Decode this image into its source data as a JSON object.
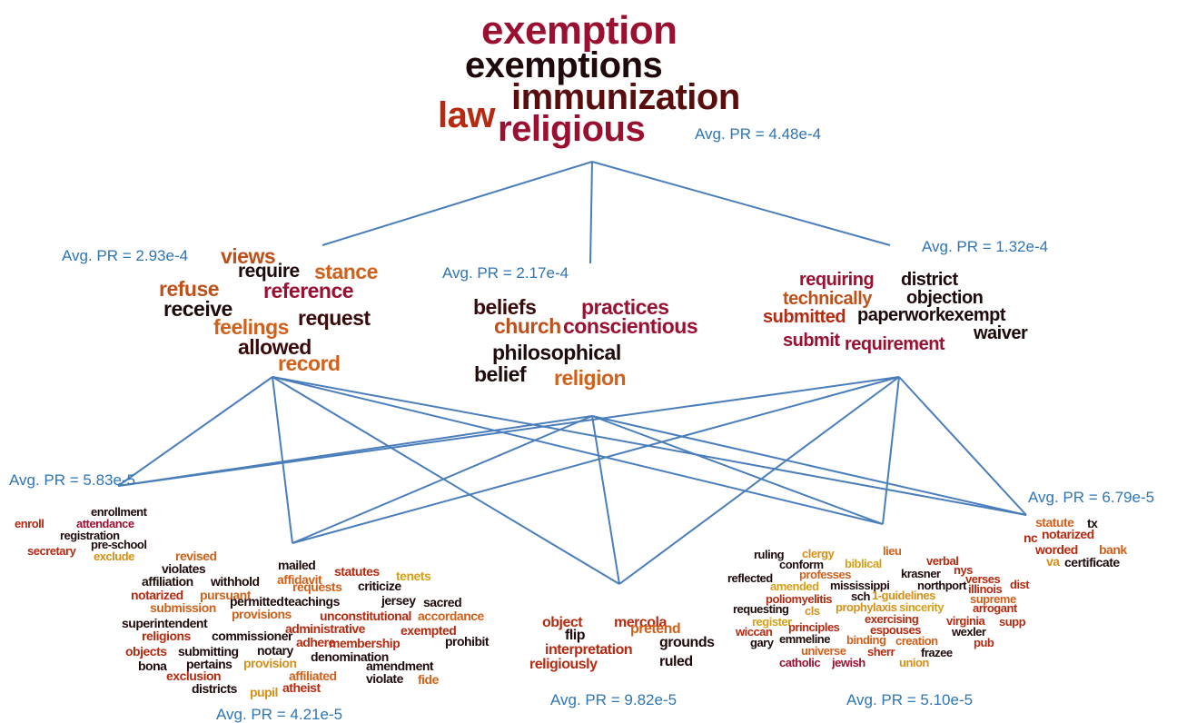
{
  "nodes": [
    {
      "label": "Avg. PR = 4.48e-4",
      "words": [
        "exemption",
        "exemptions",
        "immunization",
        "law",
        "religious"
      ]
    },
    {
      "label": "Avg. PR = 2.93e-4",
      "words": [
        "views",
        "require",
        "stance",
        "refuse",
        "reference",
        "receive",
        "request",
        "feelings",
        "allowed",
        "record"
      ]
    },
    {
      "label": "Avg. PR = 2.17e-4",
      "words": [
        "beliefs",
        "practices",
        "church",
        "conscientious",
        "philosophical",
        "belief",
        "religion"
      ]
    },
    {
      "label": "Avg. PR = 1.32e-4",
      "words": [
        "requiring",
        "district",
        "technically",
        "objection",
        "submitted",
        "paperwork",
        "exempt",
        "waiver",
        "submit",
        "requirement"
      ]
    },
    {
      "label": "Avg. PR = 5.83e-5",
      "words": [
        "enrollment",
        "enroll",
        "attendance",
        "registration",
        "pre-school",
        "secretary",
        "exclude"
      ]
    },
    {
      "label": "Avg. PR = 4.21e-5",
      "words": [
        "revised",
        "mailed",
        "violates",
        "affidavit",
        "statutes",
        "tenets",
        "affiliation",
        "withhold",
        "requests",
        "criticize",
        "notarized",
        "pursuant",
        "submission",
        "permitted",
        "teachings",
        "jersey",
        "sacred",
        "provisions",
        "unconstitutional",
        "accordance",
        "superintendent",
        "administrative",
        "exempted",
        "religions",
        "commissioner",
        "adhere",
        "membership",
        "prohibit",
        "objects",
        "submitting",
        "notary",
        "denomination",
        "bona",
        "pertains",
        "provision",
        "amendment",
        "exclusion",
        "affiliated",
        "violate",
        "fide",
        "districts",
        "pupil",
        "atheist"
      ]
    },
    {
      "label": "Avg. PR = 9.82e-5",
      "words": [
        "object",
        "mercola",
        "flip",
        "pretend",
        "grounds",
        "interpretation",
        "religiously",
        "ruled"
      ]
    },
    {
      "label": "Avg. PR = 5.10e-5",
      "words": [
        "ruling",
        "clergy",
        "lieu",
        "conform",
        "biblical",
        "verbal",
        "reflected",
        "professes",
        "nys",
        "krasner",
        "verses",
        "amended",
        "mississippi",
        "northport",
        "illinois",
        "dist",
        "poliomyelitis",
        "sch",
        "1-guidelines",
        "supreme",
        "requesting",
        "cls",
        "prophylaxis",
        "sincerity",
        "arrogant",
        "register",
        "exercising",
        "virginia",
        "supp",
        "wiccan",
        "principles",
        "espouses",
        "wexler",
        "gary",
        "emmeline",
        "binding",
        "creation",
        "pub",
        "universe",
        "sherr",
        "frazee",
        "catholic",
        "jewish",
        "union"
      ]
    },
    {
      "label": "Avg. PR = 6.79e-5",
      "words": [
        "statute",
        "tx",
        "nc",
        "notarized",
        "worded",
        "bank",
        "va",
        "certificate"
      ]
    }
  ]
}
